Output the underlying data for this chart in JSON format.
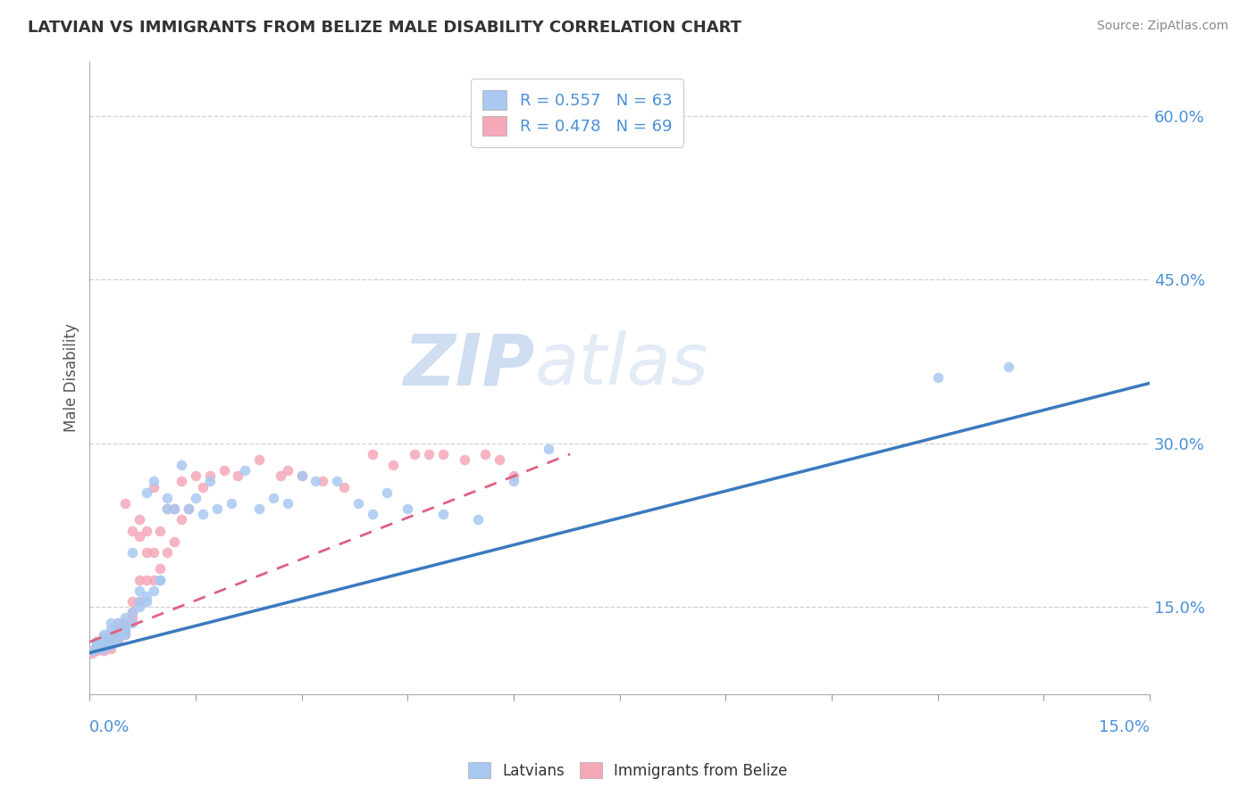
{
  "title": "LATVIAN VS IMMIGRANTS FROM BELIZE MALE DISABILITY CORRELATION CHART",
  "source": "Source: ZipAtlas.com",
  "ylabel": "Male Disability",
  "xlim": [
    0.0,
    0.15
  ],
  "ylim": [
    0.07,
    0.65
  ],
  "yticks": [
    0.15,
    0.3,
    0.45,
    0.6
  ],
  "ytick_labels": [
    "15.0%",
    "30.0%",
    "45.0%",
    "60.0%"
  ],
  "blue_color": "#a8c8f0",
  "pink_color": "#f4a8b8",
  "blue_line_color": "#3a7abf",
  "pink_line_color": "#e06080",
  "tick_label_color": "#4a90d9",
  "legend_R1": "R = 0.557",
  "legend_N1": "N = 63",
  "legend_R2": "R = 0.478",
  "legend_N2": "N = 69",
  "legend_label1": "Latvians",
  "legend_label2": "Immigrants from Belize",
  "blue_scatter_x": [
    0.0005,
    0.001,
    0.001,
    0.001,
    0.0015,
    0.002,
    0.002,
    0.002,
    0.002,
    0.0025,
    0.003,
    0.003,
    0.003,
    0.003,
    0.003,
    0.004,
    0.004,
    0.004,
    0.004,
    0.005,
    0.005,
    0.005,
    0.005,
    0.006,
    0.006,
    0.006,
    0.007,
    0.007,
    0.007,
    0.008,
    0.008,
    0.008,
    0.009,
    0.009,
    0.01,
    0.01,
    0.011,
    0.011,
    0.012,
    0.013,
    0.014,
    0.015,
    0.016,
    0.017,
    0.018,
    0.02,
    0.022,
    0.024,
    0.026,
    0.028,
    0.03,
    0.032,
    0.035,
    0.038,
    0.04,
    0.042,
    0.045,
    0.05,
    0.055,
    0.06,
    0.065,
    0.12,
    0.13
  ],
  "blue_scatter_y": [
    0.11,
    0.112,
    0.115,
    0.118,
    0.113,
    0.112,
    0.115,
    0.12,
    0.125,
    0.118,
    0.115,
    0.118,
    0.122,
    0.13,
    0.135,
    0.12,
    0.125,
    0.128,
    0.135,
    0.125,
    0.128,
    0.132,
    0.14,
    0.135,
    0.145,
    0.2,
    0.15,
    0.155,
    0.165,
    0.155,
    0.16,
    0.255,
    0.165,
    0.265,
    0.175,
    0.175,
    0.24,
    0.25,
    0.24,
    0.28,
    0.24,
    0.25,
    0.235,
    0.265,
    0.24,
    0.245,
    0.275,
    0.24,
    0.25,
    0.245,
    0.27,
    0.265,
    0.265,
    0.245,
    0.235,
    0.255,
    0.24,
    0.235,
    0.23,
    0.265,
    0.295,
    0.36,
    0.37
  ],
  "pink_scatter_x": [
    0.0003,
    0.0005,
    0.001,
    0.001,
    0.001,
    0.001,
    0.0015,
    0.002,
    0.002,
    0.002,
    0.002,
    0.002,
    0.003,
    0.003,
    0.003,
    0.003,
    0.003,
    0.004,
    0.004,
    0.004,
    0.004,
    0.004,
    0.005,
    0.005,
    0.005,
    0.005,
    0.006,
    0.006,
    0.006,
    0.006,
    0.007,
    0.007,
    0.007,
    0.007,
    0.008,
    0.008,
    0.008,
    0.009,
    0.009,
    0.009,
    0.01,
    0.01,
    0.011,
    0.011,
    0.012,
    0.012,
    0.013,
    0.013,
    0.014,
    0.015,
    0.016,
    0.017,
    0.019,
    0.021,
    0.024,
    0.027,
    0.028,
    0.03,
    0.033,
    0.036,
    0.04,
    0.043,
    0.046,
    0.048,
    0.05,
    0.053,
    0.056,
    0.058,
    0.06
  ],
  "pink_scatter_y": [
    0.108,
    0.11,
    0.11,
    0.112,
    0.115,
    0.118,
    0.112,
    0.11,
    0.113,
    0.115,
    0.118,
    0.122,
    0.112,
    0.115,
    0.118,
    0.12,
    0.125,
    0.118,
    0.122,
    0.125,
    0.13,
    0.135,
    0.125,
    0.13,
    0.135,
    0.245,
    0.14,
    0.145,
    0.155,
    0.22,
    0.155,
    0.175,
    0.215,
    0.23,
    0.175,
    0.2,
    0.22,
    0.175,
    0.2,
    0.26,
    0.185,
    0.22,
    0.2,
    0.24,
    0.21,
    0.24,
    0.23,
    0.265,
    0.24,
    0.27,
    0.26,
    0.27,
    0.275,
    0.27,
    0.285,
    0.27,
    0.275,
    0.27,
    0.265,
    0.26,
    0.29,
    0.28,
    0.29,
    0.29,
    0.29,
    0.285,
    0.29,
    0.285,
    0.27
  ],
  "blue_line_x0": 0.0,
  "blue_line_y0": 0.108,
  "blue_line_x1": 0.15,
  "blue_line_y1": 0.355,
  "pink_line_x0": 0.0,
  "pink_line_y0": 0.118,
  "pink_line_x1": 0.068,
  "pink_line_y1": 0.29,
  "watermark_zip": "ZIP",
  "watermark_atlas": "atlas",
  "background_color": "#ffffff",
  "grid_color": "#d0d0d0"
}
